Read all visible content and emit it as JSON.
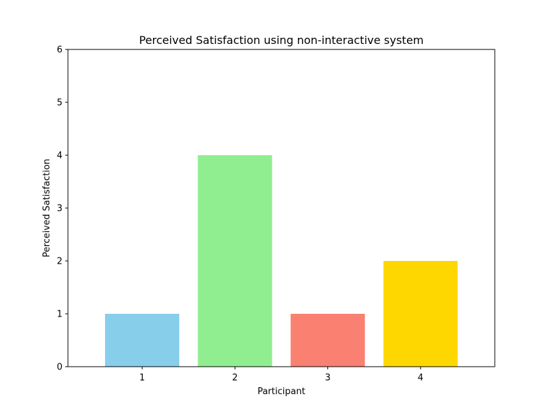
{
  "chart_data": {
    "type": "bar",
    "title": "Perceived Satisfaction using non-interactive system",
    "xlabel": "Participant",
    "ylabel": "Perceived Satisfaction",
    "categories": [
      "1",
      "2",
      "3",
      "4"
    ],
    "values": [
      1,
      4,
      1,
      2
    ],
    "colors": [
      "#87ceeb",
      "#90ee90",
      "#fa8072",
      "#ffd700"
    ],
    "ylim": [
      0,
      6
    ],
    "yticks": [
      "0",
      "1",
      "2",
      "3",
      "4",
      "5",
      "6"
    ],
    "grid": false,
    "legend": "none"
  }
}
